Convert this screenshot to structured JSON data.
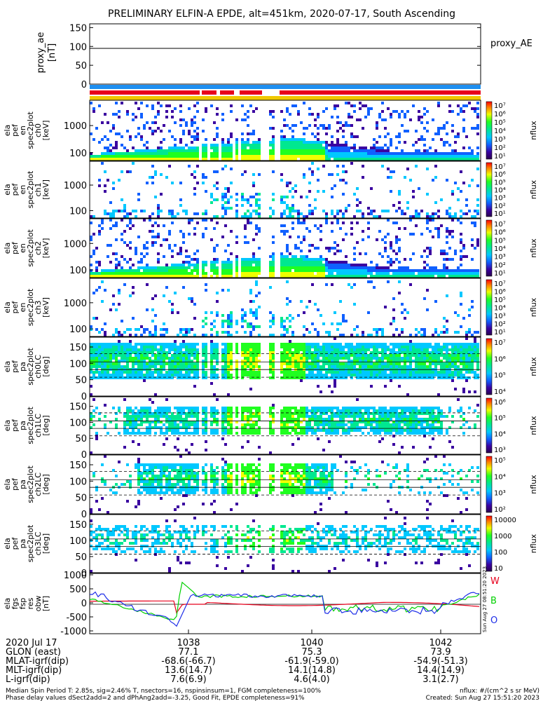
{
  "title": "PRELIMINARY ELFIN-A EPDE, alt=451km, 2020-07-17, South Ascending",
  "proxy_ae": {
    "ylabel": [
      "proxy_ae",
      "[nT]"
    ],
    "yticks": [
      "150",
      "100",
      "50",
      "0"
    ],
    "legend": "proxy_AE",
    "value": 95,
    "ylim": [
      0,
      160
    ]
  },
  "panels": [
    {
      "ylabel": [
        "ela",
        "pef",
        "en",
        "spec2plot",
        "ch0",
        "[keV]"
      ],
      "yticks": [
        "1000",
        "100"
      ],
      "cbar_ticks": [
        "10⁷",
        "10⁶",
        "10⁵",
        "10⁴",
        "10³",
        "10²",
        "10¹"
      ],
      "cbar_label": "nflux"
    },
    {
      "ylabel": [
        "ela",
        "pef",
        "en",
        "spec2plot",
        "ch1",
        "[keV]"
      ],
      "yticks": [
        "1000",
        "100"
      ],
      "cbar_ticks": [
        "10⁷",
        "10⁶",
        "10⁵",
        "10⁴",
        "10³",
        "10²",
        "10¹"
      ],
      "cbar_label": "nflux"
    },
    {
      "ylabel": [
        "ela",
        "pef",
        "en",
        "spec2plot",
        "ch2",
        "[keV]"
      ],
      "yticks": [
        "1000",
        "100"
      ],
      "cbar_ticks": [
        "10⁷",
        "10⁶",
        "10⁵",
        "10⁴",
        "10³",
        "10²",
        "10¹"
      ],
      "cbar_label": "nflux"
    },
    {
      "ylabel": [
        "ela",
        "pef",
        "en",
        "spec2plot",
        "ch3",
        "[keV]"
      ],
      "yticks": [
        "1000",
        "100"
      ],
      "cbar_ticks": [
        "10⁷",
        "10⁶",
        "10⁵",
        "10⁴",
        "10³",
        "10²",
        "10¹"
      ],
      "cbar_label": "nflux"
    },
    {
      "ylabel": [
        "ela",
        "pef",
        "pa",
        "spec2plot",
        "ch0LC",
        "[deg]"
      ],
      "yticks": [
        "150",
        "100",
        "50",
        "0"
      ],
      "cbar_ticks": [
        "10⁷",
        "10⁶",
        "10⁵",
        "10⁴"
      ],
      "cbar_label": "nflux"
    },
    {
      "ylabel": [
        "ela",
        "pef",
        "pa",
        "spec2plot",
        "ch1LC",
        "[deg]"
      ],
      "yticks": [
        "150",
        "100",
        "50",
        "0"
      ],
      "cbar_ticks": [
        "10⁶",
        "10⁵",
        "10⁴",
        "10³"
      ],
      "cbar_label": "nflux"
    },
    {
      "ylabel": [
        "ela",
        "pef",
        "pa",
        "spec2plot",
        "ch2LC",
        "[deg]"
      ],
      "yticks": [
        "150",
        "100",
        "50",
        "0"
      ],
      "cbar_ticks": [
        "10⁵",
        "10⁴",
        "10³",
        "10²"
      ],
      "cbar_label": "nflux"
    },
    {
      "ylabel": [
        "ela",
        "pef",
        "pa",
        "spec2plot",
        "ch3LC",
        "[deg]"
      ],
      "yticks": [
        "150",
        "100",
        "50",
        "0"
      ],
      "cbar_ticks": [
        "10000",
        "1000",
        "100",
        "10"
      ],
      "cbar_label": "nflux"
    }
  ],
  "field": {
    "ylabel": [
      "ela",
      "fgs",
      "fsp",
      "res",
      "obw",
      "[nT]"
    ],
    "yticks": [
      "1000",
      "500",
      "0",
      "-500",
      "-1000"
    ],
    "ylim": [
      -1100,
      1050
    ],
    "legend": [
      {
        "name": "W",
        "color": "#e8001c"
      },
      {
        "name": "B",
        "color": "#00d000"
      },
      {
        "name": "O",
        "color": "#1e2ee8"
      }
    ],
    "created_vertical": "Sun Aug 27 08:51:20 2023"
  },
  "xaxis": {
    "ticks": [
      "1038",
      "1040",
      "1042"
    ],
    "tick_hours": [
      10.633,
      10.667,
      10.7
    ],
    "rows": [
      {
        "label": "2020 Jul 17",
        "values": [
          "",
          "",
          ""
        ]
      },
      {
        "label": "GLON (east)",
        "values": [
          "77.1",
          "75.3",
          "73.9"
        ]
      },
      {
        "label": "MLAT-igrf(dip)",
        "values": [
          "-68.6(-66.7)",
          "-61.9(-59.0)",
          "-54.9(-51.3)"
        ]
      },
      {
        "label": "MLT-igrf(dip)",
        "values": [
          "13.6(14.7)",
          "14.1(14.8)",
          "14.4(14.9)"
        ]
      },
      {
        "label": "L-igrf(dip)",
        "values": [
          "7.6(6.9)",
          "4.6(4.0)",
          "3.1(2.7)"
        ]
      }
    ]
  },
  "footer": {
    "line1": "Median Spin Period T: 2.85s, sig=2.46% T, nsectors=16, nspinsinsum=1, FGM completeness=100%",
    "line2": "Phase delay values dSect2add=2 and dPhAng2add=-3.25, Good Fit, EPDE completeness=91%",
    "right1": "nflux: #/(cm^2 s sr MeV)",
    "right2": "Created: Sun Aug 27 15:51:20 2023"
  },
  "colors": {
    "bar_blue": "#1e8ff0",
    "bar_red": "#e8001c",
    "bar_yellow": "#f0c800"
  }
}
